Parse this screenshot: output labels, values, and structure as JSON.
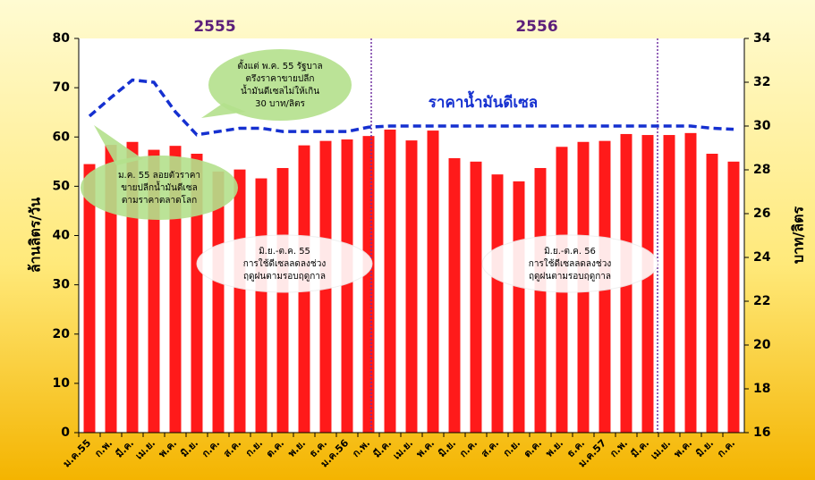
{
  "chart_data": {
    "type": "bar",
    "periods": [
      "2555",
      "2556"
    ],
    "categories": [
      "ม.ค.55",
      "ก.พ.",
      "มี.ค.",
      "เม.ย.",
      "พ.ค.",
      "มิ.ย.",
      "ก.ค.",
      "ส.ค.",
      "ก.ย.",
      "ต.ค.",
      "พ.ย.",
      "ธ.ค.",
      "ม.ค.56",
      "ก.พ.",
      "มี.ค.",
      "เม.ย.",
      "พ.ค.",
      "มิ.ย.",
      "ก.ค.",
      "ส.ค.",
      "ก.ย.",
      "ต.ค.",
      "พ.ย.",
      "ธ.ค.",
      "ม.ค.57",
      "ก.พ.",
      "มี.ค.",
      "เม.ย.",
      "พ.ค.",
      "มิ.ย.",
      "ก.ค."
    ],
    "series": [
      {
        "type": "bar",
        "color": "#ff1a1a",
        "values": [
          54.5,
          58.4,
          59,
          57.4,
          58.2,
          56.6,
          53,
          53.4,
          51.6,
          53.7,
          58.3,
          59.2,
          59.5,
          60.2,
          61.5,
          59.3,
          61.3,
          55.7,
          55,
          52.4,
          51,
          53.7,
          58,
          59,
          59.2,
          60.6,
          60.4,
          60.4,
          60.8,
          56.6,
          55
        ]
      },
      {
        "type": "line",
        "color": "#1530d0",
        "line_style": "dashed",
        "axis": "y2",
        "values": [
          30.45,
          31.3,
          32.1,
          32,
          30.65,
          29.6,
          29.75,
          29.9,
          29.9,
          29.75,
          29.75,
          29.75,
          29.75,
          29.95,
          30,
          30,
          30,
          30,
          30,
          30,
          30,
          30,
          30,
          30,
          30,
          30,
          30,
          30,
          30,
          29.9,
          29.85
        ]
      }
    ],
    "line_label": "ราคาน้ำมันดีเซล",
    "ylabel": "ล้านลิตร/วัน",
    "y2label": "บาท/ลิตร",
    "ylim": [
      0,
      80
    ],
    "yticks": [
      0,
      10,
      20,
      30,
      40,
      50,
      60,
      70,
      80
    ],
    "y2lim": [
      16,
      34
    ],
    "y2ticks": [
      16,
      18,
      20,
      22,
      24,
      26,
      28,
      30,
      32,
      34
    ],
    "annotations": [
      {
        "lines": [
          "ตั้งแต่ พ.ค. 55 รัฐบาล",
          "ตรึงราคาขายปลีก",
          "น้ำมันดีเซลไม่ให้เกิน",
          "30 บาท/ลิตร"
        ]
      },
      {
        "lines": [
          "ม.ค. 55 ลอยตัวราคา",
          "ขายปลีกน้ำมันดีเซล",
          "ตามราคาตลาดโลก"
        ]
      },
      {
        "lines": [
          "มิ.ย.-ต.ค. 55",
          "การใช้ดีเซลลดลงช่วง",
          "ฤดูฝนตามรอบฤดูกาล"
        ]
      },
      {
        "lines": [
          "มิ.ย.-ต.ค. 56",
          "การใช้ดีเซลลดลงช่วง",
          "ฤดูฝนตามรอบฤดูกาล"
        ]
      }
    ]
  }
}
